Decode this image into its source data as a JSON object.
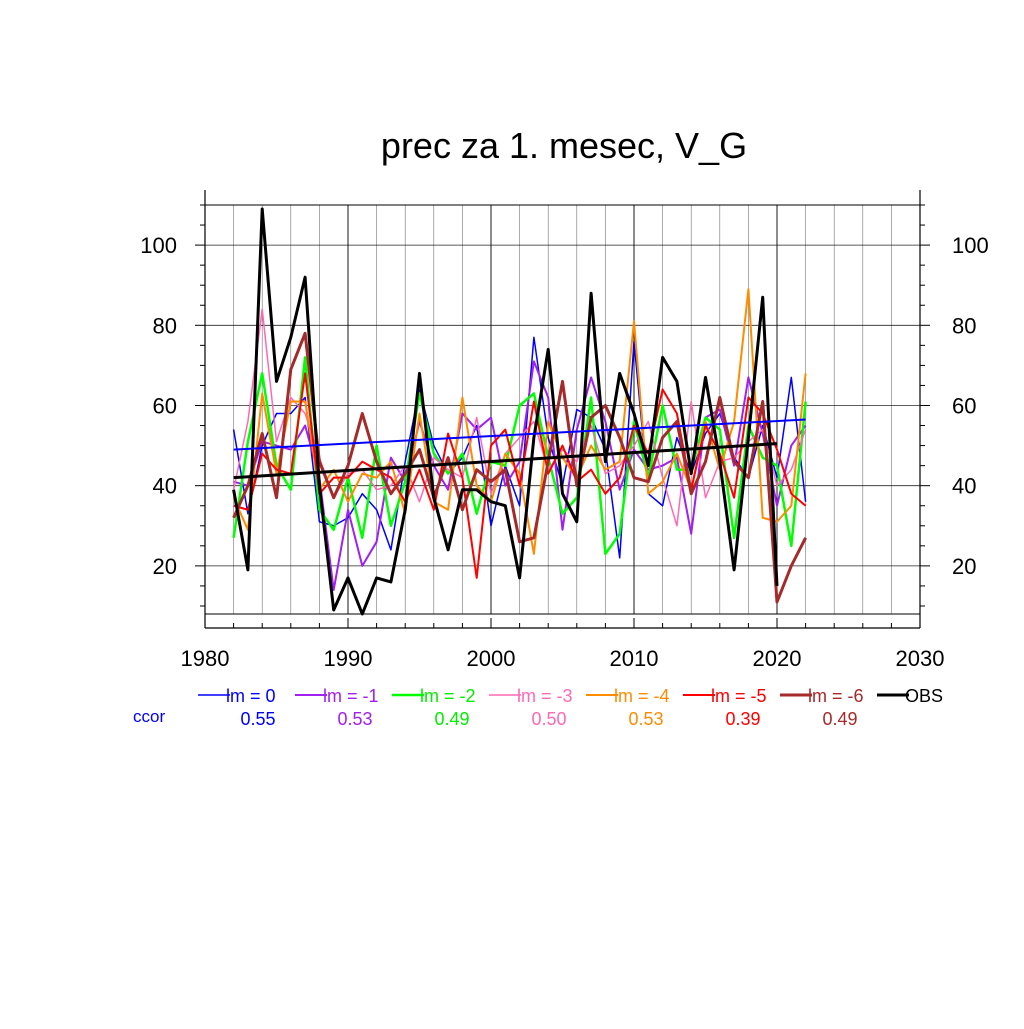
{
  "chart_data": {
    "type": "line",
    "title": "prec za 1. mesec, V_G",
    "xlabel": "",
    "ylabel": "",
    "xlim": [
      1980,
      2030
    ],
    "ylim": [
      8,
      110
    ],
    "x_ticks": [
      1980,
      1990,
      2000,
      2010,
      2020,
      2030
    ],
    "y_ticks": [
      20,
      40,
      60,
      80,
      100
    ],
    "grid": true,
    "legend_position": "bottom",
    "x": [
      1982,
      1983,
      1984,
      1985,
      1986,
      1987,
      1988,
      1989,
      1990,
      1991,
      1992,
      1993,
      1994,
      1995,
      1996,
      1997,
      1998,
      1999,
      2000,
      2001,
      2002,
      2003,
      2004,
      2005,
      2006,
      2007,
      2008,
      2009,
      2010,
      2011,
      2012,
      2013,
      2014,
      2015,
      2016,
      2017,
      2018,
      2019,
      2020,
      2021,
      2022
    ],
    "series": [
      {
        "name": "lm = 0",
        "color": "#0000ff",
        "width": 1.5,
        "values": [
          54,
          33,
          50,
          58,
          58,
          62,
          31,
          30,
          32,
          38,
          34,
          24,
          46,
          64,
          50,
          43,
          47,
          55,
          30,
          45,
          35,
          77,
          52,
          40,
          59,
          57,
          49,
          22,
          76,
          38,
          35,
          52,
          43,
          53,
          58,
          47,
          42,
          55,
          42,
          67,
          36
        ]
      },
      {
        "name": "lm = -1",
        "color": "#a020f0",
        "width": 2,
        "values": [
          41,
          40,
          51,
          50,
          49,
          55,
          42,
          14,
          34,
          20,
          26,
          47,
          41,
          56,
          45,
          39,
          58,
          54,
          57,
          40,
          46,
          71,
          62,
          29,
          54,
          67,
          56,
          39,
          49,
          44,
          45,
          47,
          28,
          57,
          59,
          45,
          67,
          53,
          35,
          50,
          55
        ]
      },
      {
        "name": "lm = -2",
        "color": "#00ff00",
        "width": 2.5,
        "values": [
          27,
          51,
          68,
          45,
          39,
          72,
          34,
          29,
          42,
          27,
          50,
          30,
          41,
          63,
          48,
          43,
          48,
          33,
          46,
          45,
          60,
          63,
          47,
          33,
          37,
          62,
          23,
          28,
          56,
          42,
          60,
          44,
          44,
          57,
          54,
          27,
          55,
          47,
          45,
          25,
          61
        ]
      },
      {
        "name": "lm = -3",
        "color": "#ff69b4",
        "width": 1.5,
        "values": [
          39,
          56,
          84,
          51,
          62,
          58,
          47,
          37,
          43,
          44,
          39,
          40,
          45,
          36,
          47,
          44,
          42,
          57,
          38,
          48,
          52,
          56,
          44,
          49,
          46,
          55,
          43,
          45,
          50,
          56,
          42,
          30,
          61,
          37,
          46,
          47,
          51,
          54,
          40,
          44,
          54
        ]
      },
      {
        "name": "lm = -4",
        "color": "#ff8c00",
        "width": 2,
        "values": [
          37,
          29,
          63,
          43,
          61,
          61,
          39,
          44,
          36,
          43,
          42,
          46,
          33,
          58,
          36,
          34,
          62,
          40,
          36,
          48,
          43,
          23,
          56,
          47,
          42,
          50,
          44,
          46,
          81,
          38,
          41,
          48,
          39,
          56,
          44,
          56,
          89,
          32,
          31,
          35,
          68
        ]
      },
      {
        "name": "lm = -5",
        "color": "#ff0000",
        "width": 2,
        "values": [
          35,
          34,
          48,
          44,
          43,
          68,
          38,
          42,
          42,
          46,
          44,
          42,
          36,
          44,
          34,
          53,
          42,
          17,
          50,
          54,
          40,
          61,
          43,
          50,
          41,
          44,
          38,
          42,
          55,
          48,
          64,
          58,
          39,
          55,
          48,
          37,
          62,
          58,
          49,
          38,
          35
        ]
      },
      {
        "name": "lm = -6",
        "color": "#a52a2a",
        "width": 3,
        "values": [
          32,
          40,
          53,
          37,
          69,
          78,
          46,
          37,
          45,
          58,
          46,
          38,
          43,
          49,
          37,
          47,
          34,
          44,
          41,
          44,
          26,
          27,
          46,
          66,
          40,
          57,
          60,
          52,
          42,
          41,
          52,
          56,
          38,
          46,
          62,
          46,
          42,
          61,
          11,
          20,
          27
        ]
      },
      {
        "name": "OBS",
        "color": "#000000",
        "width": 3,
        "values": [
          39,
          19,
          109,
          66,
          77,
          92,
          40,
          9,
          17,
          8,
          17,
          16,
          34,
          68,
          37,
          24,
          39,
          39,
          36,
          35,
          17,
          52,
          74,
          38,
          31,
          88,
          46,
          68,
          58,
          45,
          72,
          66,
          43,
          67,
          46,
          19,
          52,
          87,
          15,
          null,
          null
        ]
      }
    ],
    "trend_lines": [
      {
        "series": "lm = 0",
        "color": "#0000ff",
        "x": [
          1982,
          2022
        ],
        "y": [
          49,
          56.5
        ]
      },
      {
        "series": "OBS",
        "color": "#000000",
        "x": [
          1982,
          2020
        ],
        "y": [
          42,
          50.5
        ]
      }
    ],
    "ccor_label": "ccor",
    "ccor_values": [
      "0.55",
      "0.53",
      "0.49",
      "0.50",
      "0.53",
      "0.39",
      "0.49"
    ]
  }
}
